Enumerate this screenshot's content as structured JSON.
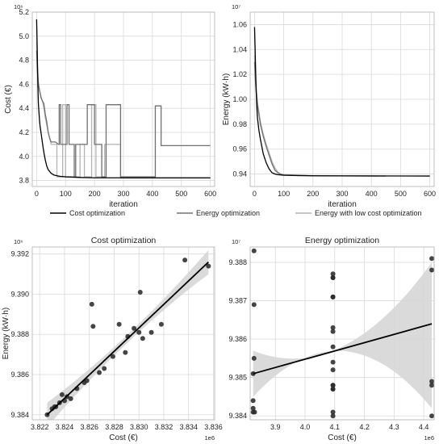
{
  "chart_data": [
    {
      "type": "line",
      "xlabel": "iteration",
      "ylabel": "Cost (€)",
      "y_exponent_label": "10⁶",
      "xlim": [
        -15,
        615
      ],
      "ylim": [
        3.75,
        5.2
      ],
      "xticks": [
        0,
        100,
        200,
        300,
        400,
        500,
        600
      ],
      "yticks": [
        3.8,
        4.0,
        4.2,
        4.4,
        4.6,
        4.8,
        5.0,
        5.2
      ],
      "ytick_labels": [
        "3.8",
        "4.0",
        "4.2",
        "4.4",
        "4.6",
        "4.8",
        "5.0",
        "5.2"
      ],
      "grid": true,
      "series": [
        {
          "name": "Cost optimization",
          "color": "#000000",
          "x": [
            0,
            2,
            4,
            6,
            8,
            10,
            12,
            15,
            18,
            22,
            26,
            30,
            35,
            40,
            50,
            60,
            80,
            100,
            150,
            200,
            600
          ],
          "y": [
            5.14,
            4.9,
            4.62,
            4.44,
            4.37,
            4.3,
            4.25,
            4.2,
            4.15,
            4.08,
            4.02,
            3.97,
            3.92,
            3.89,
            3.86,
            3.845,
            3.835,
            3.83,
            3.825,
            3.822,
            3.822
          ]
        },
        {
          "name": "Energy optimization",
          "color": "#707070",
          "x": [
            0,
            3,
            6,
            10,
            15,
            20,
            25,
            30,
            35,
            40,
            45,
            50,
            65,
            70,
            75,
            78,
            78,
            83,
            83,
            105,
            105,
            112,
            112,
            130,
            130,
            135,
            135,
            175,
            175,
            200,
            200,
            225,
            225,
            240,
            240,
            290,
            290,
            410,
            410,
            430,
            430,
            440,
            440,
            600
          ],
          "y": [
            4.88,
            4.7,
            4.6,
            4.55,
            4.49,
            4.46,
            4.44,
            4.35,
            4.29,
            4.2,
            4.15,
            4.12,
            4.12,
            4.11,
            4.1,
            4.1,
            4.43,
            4.43,
            4.1,
            4.1,
            4.43,
            4.43,
            4.1,
            4.1,
            3.83,
            3.83,
            4.1,
            4.1,
            4.43,
            4.43,
            4.1,
            4.1,
            3.83,
            3.83,
            4.43,
            4.43,
            3.83,
            3.83,
            4.42,
            4.42,
            4.09,
            4.09,
            4.09,
            4.09
          ]
        },
        {
          "name": "Energy with low cost optimization",
          "color": "#b4b4b4",
          "x": [
            0,
            3,
            6,
            10,
            15,
            20,
            25,
            30,
            35,
            40,
            45,
            50,
            70,
            70,
            90,
            90,
            100,
            100,
            150,
            150,
            165,
            165,
            190,
            190,
            205,
            205,
            235,
            235,
            290,
            290,
            410,
            410,
            600
          ],
          "y": [
            4.95,
            4.75,
            4.62,
            4.55,
            4.5,
            4.46,
            4.4,
            4.32,
            4.26,
            4.2,
            4.16,
            4.1,
            4.1,
            3.83,
            3.83,
            4.43,
            4.43,
            3.83,
            3.83,
            4.1,
            4.1,
            3.83,
            3.83,
            4.43,
            4.43,
            3.83,
            3.83,
            4.1,
            4.1,
            3.82,
            3.82,
            3.82,
            3.82
          ]
        }
      ]
    },
    {
      "type": "line",
      "xlabel": "iteration",
      "ylabel": "Energy (kW·h)",
      "y_exponent_label": "10⁷",
      "xlim": [
        -15,
        615
      ],
      "ylim": [
        0.93,
        1.07
      ],
      "xticks": [
        0,
        100,
        200,
        300,
        400,
        500,
        600
      ],
      "yticks": [
        0.94,
        0.96,
        0.98,
        1.0,
        1.02,
        1.04,
        1.06
      ],
      "ytick_labels": [
        "0.94",
        "0.96",
        "0.98",
        "1.00",
        "1.02",
        "1.04",
        "1.06"
      ],
      "grid": true,
      "series": [
        {
          "name": "Cost optimization",
          "color": "#000000",
          "x": [
            0,
            2,
            4,
            6,
            8,
            10,
            15,
            20,
            25,
            30,
            40,
            50,
            60,
            70,
            80,
            100,
            150,
            200,
            300,
            600
          ],
          "y": [
            1.058,
            1.04,
            1.02,
            1.005,
            0.993,
            0.985,
            0.975,
            0.968,
            0.962,
            0.956,
            0.949,
            0.944,
            0.941,
            0.94,
            0.9395,
            0.939,
            0.9388,
            0.9386,
            0.9385,
            0.9384
          ]
        },
        {
          "name": "Energy optimization",
          "color": "#707070",
          "x": [
            0,
            3,
            6,
            10,
            15,
            20,
            25,
            30,
            40,
            50,
            60,
            70,
            80,
            90,
            100,
            150,
            200,
            300,
            450
          ],
          "y": [
            1.03,
            1.015,
            1.005,
            0.995,
            0.988,
            0.98,
            0.975,
            0.97,
            0.962,
            0.955,
            0.948,
            0.943,
            0.941,
            0.9398,
            0.9393,
            0.9388,
            0.9386,
            0.9385,
            0.9384
          ]
        },
        {
          "name": "Energy with low cost optimization",
          "color": "#b4b4b4",
          "x": [
            0,
            3,
            6,
            10,
            15,
            20,
            25,
            30,
            40,
            50,
            60,
            70,
            80,
            90,
            100,
            150,
            200,
            300,
            420
          ],
          "y": [
            1.035,
            1.018,
            1.008,
            0.998,
            0.99,
            0.982,
            0.977,
            0.972,
            0.964,
            0.957,
            0.95,
            0.945,
            0.9415,
            0.94,
            0.9395,
            0.939,
            0.9387,
            0.9385,
            0.9384
          ]
        }
      ]
    },
    {
      "type": "scatter",
      "title": "Cost optimization",
      "xlabel": "Cost (€)",
      "ylabel": "Energy (kW·h)",
      "x_exponent_label": "1e6",
      "y_exponent_label": "10⁶",
      "xlim": [
        3.8214,
        3.8361
      ],
      "ylim": [
        9.38375,
        9.39235
      ],
      "xticks": [
        3.822,
        3.824,
        3.826,
        3.828,
        3.83,
        3.832,
        3.834,
        3.836
      ],
      "xtick_labels": [
        "3.822",
        "3.824",
        "3.826",
        "3.828",
        "3.830",
        "3.832",
        "3.834",
        "3.836"
      ],
      "yticks": [
        9.384,
        9.386,
        9.388,
        9.39,
        9.392
      ],
      "ytick_labels": [
        "9.384",
        "9.386",
        "9.388",
        "9.390",
        "9.392"
      ],
      "grid": true,
      "points_x": [
        3.8226,
        3.823,
        3.8232,
        3.8233,
        3.8236,
        3.8238,
        3.824,
        3.8242,
        3.8245,
        3.825,
        3.8256,
        3.8258,
        3.8262,
        3.8263,
        3.8268,
        3.8272,
        3.8279,
        3.8284,
        3.8289,
        3.8291,
        3.8296,
        3.83,
        3.8301,
        3.8303,
        3.831,
        3.8318,
        3.8337,
        3.8356
      ],
      "points_y": [
        9.384,
        9.3843,
        9.3844,
        9.3844,
        9.3846,
        9.385,
        9.3847,
        9.3849,
        9.3848,
        9.3853,
        9.3856,
        9.3857,
        9.3895,
        9.3884,
        9.3861,
        9.3863,
        9.3869,
        9.3885,
        9.3871,
        9.3879,
        9.3883,
        9.3881,
        9.3901,
        9.3878,
        9.3881,
        9.3885,
        9.3917,
        9.3914
      ],
      "fit_x": [
        3.8226,
        3.8356
      ],
      "fit_y": [
        9.384,
        9.3916
      ],
      "ci_upper_y": [
        9.3846,
        9.3922
      ],
      "ci_lower_y": [
        9.3834,
        9.391
      ],
      "ci_mid_halfwidth": 0.0002
    },
    {
      "type": "scatter",
      "title": "Energy optimization",
      "xlabel": "Cost (€)",
      "ylabel": "",
      "x_exponent_label": "1e6",
      "y_exponent_label": "10⁷",
      "xlim": [
        3.815,
        4.435
      ],
      "ylim": [
        0.93839,
        0.93884
      ],
      "xticks": [
        3.9,
        4.0,
        4.1,
        4.2,
        4.3,
        4.4
      ],
      "xtick_labels": [
        "3.9",
        "4.0",
        "4.1",
        "4.2",
        "4.3",
        "4.4"
      ],
      "yticks": [
        0.9384,
        0.9385,
        0.9386,
        0.9387,
        0.9388
      ],
      "ytick_labels": [
        "9.384",
        "9.385",
        "9.386",
        "9.387",
        "9.388"
      ],
      "grid": true,
      "points_x": [
        3.825,
        3.825,
        3.825,
        3.825,
        3.828,
        3.828,
        3.828,
        3.83,
        4.094,
        4.094,
        4.094,
        4.094,
        4.094,
        4.094,
        4.094,
        4.094,
        4.094,
        4.094,
        4.094,
        4.094,
        4.094,
        4.094,
        4.094,
        4.094,
        4.427,
        4.427,
        4.427,
        4.427,
        4.427
      ],
      "points_y": [
        0.93841,
        0.93842,
        0.93844,
        0.93851,
        0.93883,
        0.93869,
        0.93855,
        0.93841,
        0.93877,
        0.93876,
        0.93876,
        0.93871,
        0.93871,
        0.93863,
        0.93862,
        0.93858,
        0.93854,
        0.93852,
        0.93848,
        0.93848,
        0.93847,
        0.93847,
        0.93841,
        0.9384,
        0.93881,
        0.93878,
        0.93849,
        0.93848,
        0.9384
      ],
      "fit_x": [
        3.825,
        4.427
      ],
      "fit_y": [
        0.93851,
        0.93864
      ],
      "ci_upper_y": [
        0.93857,
        0.9388
      ],
      "ci_lower_y": [
        0.93845,
        0.93842
      ],
      "ci_mid_halfwidth": 6e-06
    }
  ]
}
